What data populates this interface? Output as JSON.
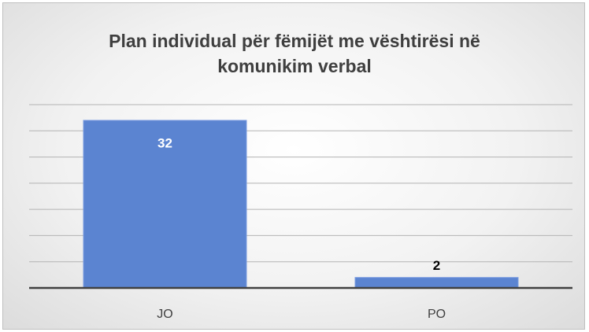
{
  "chart_data": {
    "type": "bar",
    "title": "Plan individual për fëmijët me vështirësi në komunikim verbal",
    "categories": [
      "JO",
      "PO"
    ],
    "values": [
      32,
      2
    ],
    "color": "#5b84d1",
    "ylim": [
      0,
      35
    ],
    "yticks": [
      0,
      5,
      10,
      15,
      20,
      25,
      30,
      35
    ],
    "grid": true
  }
}
